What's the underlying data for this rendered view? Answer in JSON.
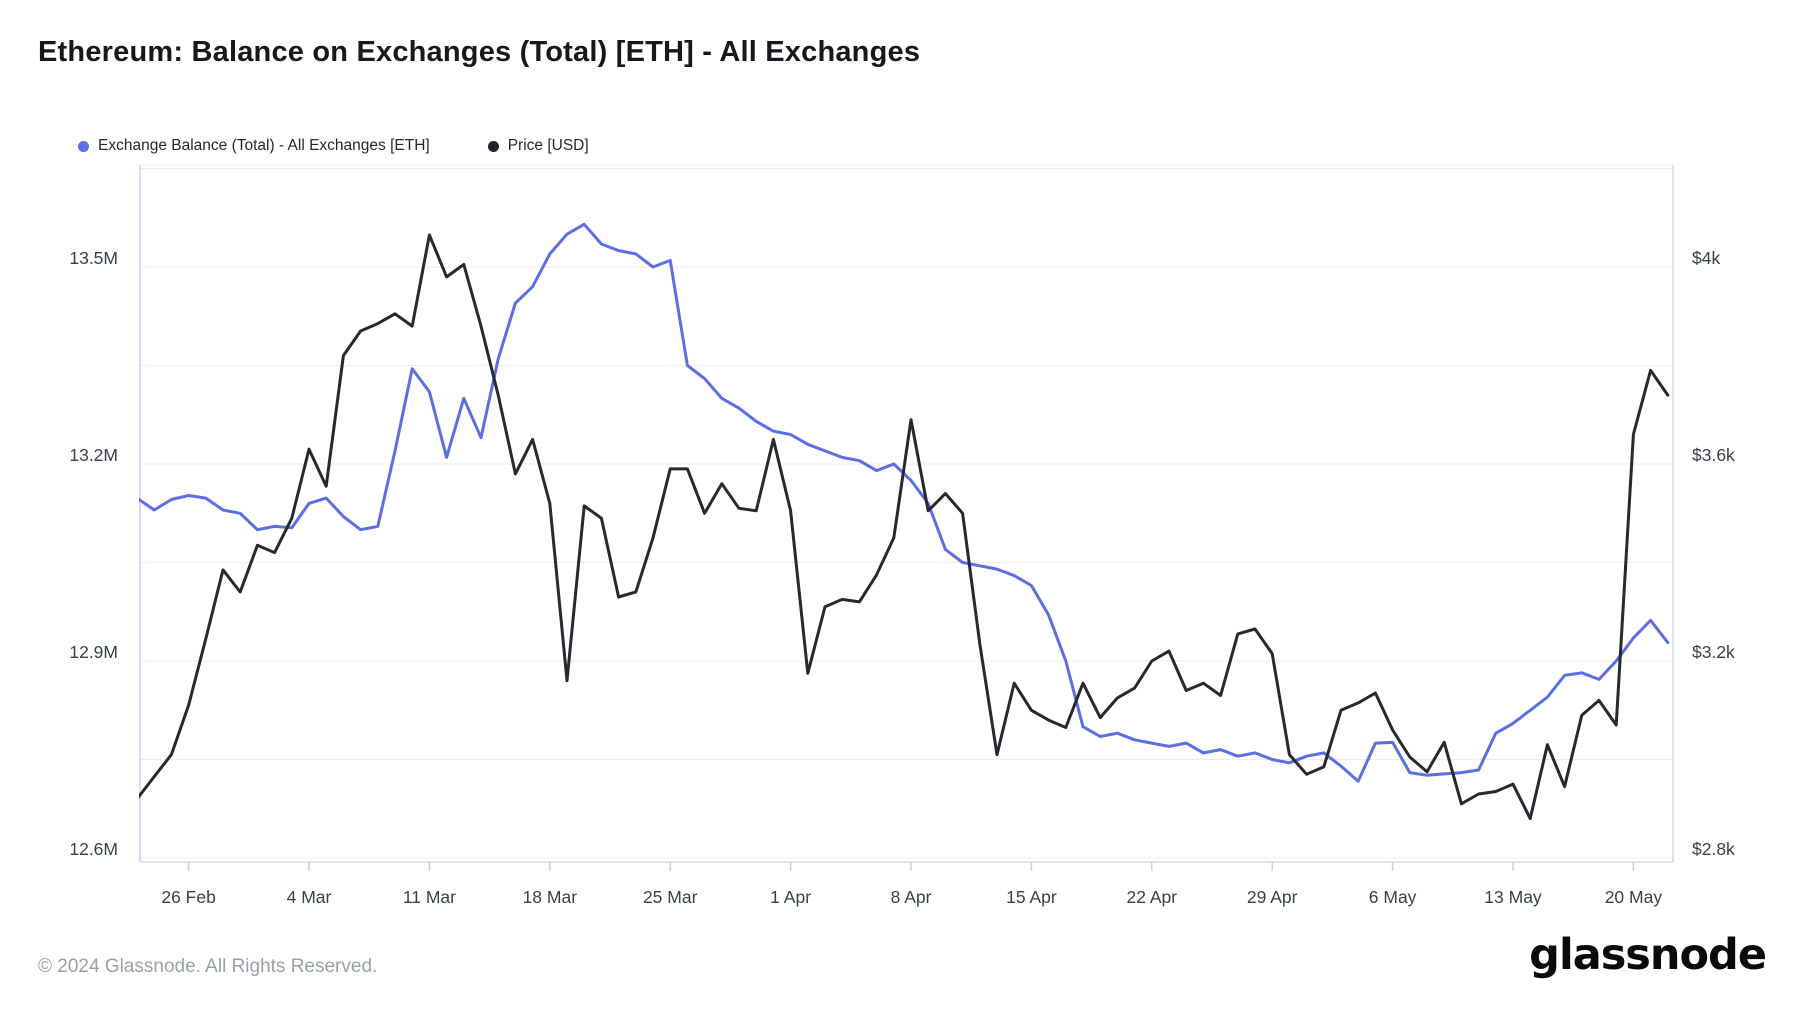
{
  "page": {
    "title": "Ethereum: Balance on Exchanges (Total) [ETH] - All Exchanges"
  },
  "legend": [
    {
      "label": "Exchange Balance (Total) - All Exchanges [ETH]",
      "color": "#5b6ee3"
    },
    {
      "label": "Price [USD]",
      "color": "#1f242b"
    }
  ],
  "footer": {
    "copyright": "© 2024 Glassnode. All Rights Reserved.",
    "logo_text": "glassnode"
  },
  "colors": {
    "background": "#ffffff",
    "grid_line": "#ededf0",
    "plot_left_border": "#c7d0f2",
    "plot_border": "#d7dade",
    "axis_text": "#3a4049",
    "balance_line": "#5b6ee3",
    "price_line": "#26292f"
  },
  "chart_data": {
    "type": "line",
    "title": "Ethereum: Balance on Exchanges (Total) [ETH] - All Exchanges",
    "grid": true,
    "legend_position": "top-left",
    "x_tick_labels": [
      "26 Feb",
      "4 Mar",
      "11 Mar",
      "18 Mar",
      "25 Mar",
      "1 Apr",
      "8 Apr",
      "15 Apr",
      "22 Apr",
      "29 Apr",
      "6 May",
      "13 May",
      "20 May"
    ],
    "dates": [
      "23 Feb",
      "24 Feb",
      "25 Feb",
      "26 Feb",
      "27 Feb",
      "28 Feb",
      "29 Feb",
      "1 Mar",
      "2 Mar",
      "3 Mar",
      "4 Mar",
      "5 Mar",
      "6 Mar",
      "7 Mar",
      "8 Mar",
      "9 Mar",
      "10 Mar",
      "11 Mar",
      "12 Mar",
      "13 Mar",
      "14 Mar",
      "15 Mar",
      "16 Mar",
      "17 Mar",
      "18 Mar",
      "19 Mar",
      "20 Mar",
      "21 Mar",
      "22 Mar",
      "23 Mar",
      "24 Mar",
      "25 Mar",
      "26 Mar",
      "27 Mar",
      "28 Mar",
      "29 Mar",
      "30 Mar",
      "31 Mar",
      "1 Apr",
      "2 Apr",
      "3 Apr",
      "4 Apr",
      "5 Apr",
      "6 Apr",
      "7 Apr",
      "8 Apr",
      "9 Apr",
      "10 Apr",
      "11 Apr",
      "12 Apr",
      "13 Apr",
      "14 Apr",
      "15 Apr",
      "16 Apr",
      "17 Apr",
      "18 Apr",
      "19 Apr",
      "20 Apr",
      "21 Apr",
      "22 Apr",
      "23 Apr",
      "24 Apr",
      "25 Apr",
      "26 Apr",
      "27 Apr",
      "28 Apr",
      "29 Apr",
      "30 Apr",
      "1 May",
      "2 May",
      "3 May",
      "4 May",
      "5 May",
      "6 May",
      "7 May",
      "8 May",
      "9 May",
      "10 May",
      "11 May",
      "12 May",
      "13 May",
      "14 May",
      "15 May",
      "16 May",
      "17 May",
      "18 May",
      "19 May",
      "20 May",
      "21 May",
      "22 May"
    ],
    "left_axis": {
      "label": "Exchange Balance (Total) [ETH]",
      "unit": "M ETH",
      "tick_labels": [
        "13.5M",
        "13.2M",
        "12.9M",
        "12.6M"
      ],
      "tick_values": [
        13.5,
        13.2,
        12.9,
        12.6
      ],
      "grid_values": [
        13.65,
        13.5,
        13.35,
        13.2,
        13.05,
        12.9,
        12.75,
        12.6
      ]
    },
    "right_axis": {
      "label": "Price",
      "unit": "USD",
      "tick_labels": [
        "$4k",
        "$3.6k",
        "$3.2k",
        "$2.8k"
      ],
      "tick_values": [
        4000,
        3600,
        3200,
        2800
      ]
    },
    "series": [
      {
        "name": "Exchange Balance (Total) - All Exchanges [ETH]",
        "axis": "left",
        "color": "#5b6ee3",
        "values": [
          13.148,
          13.13,
          13.146,
          13.152,
          13.148,
          13.13,
          13.125,
          13.1,
          13.105,
          13.103,
          13.14,
          13.148,
          13.12,
          13.1,
          13.105,
          13.22,
          13.345,
          13.31,
          13.21,
          13.3,
          13.24,
          13.36,
          13.445,
          13.47,
          13.52,
          13.55,
          13.565,
          13.535,
          13.525,
          13.52,
          13.5,
          13.51,
          13.35,
          13.33,
          13.3,
          13.285,
          13.265,
          13.25,
          13.245,
          13.23,
          13.22,
          13.21,
          13.205,
          13.19,
          13.2,
          13.175,
          13.14,
          13.07,
          13.05,
          13.045,
          13.04,
          13.03,
          13.015,
          12.97,
          12.9,
          12.8,
          12.785,
          12.79,
          12.78,
          12.775,
          12.77,
          12.775,
          12.76,
          12.765,
          12.755,
          12.76,
          12.75,
          12.745,
          12.755,
          12.76,
          12.74,
          12.717,
          12.775,
          12.776,
          12.73,
          12.726,
          12.728,
          12.73,
          12.734,
          12.79,
          12.805,
          12.825,
          12.845,
          12.878,
          12.882,
          12.872,
          12.9,
          12.935,
          12.962,
          12.928
        ]
      },
      {
        "name": "Price [USD]",
        "axis": "right",
        "color": "#26292f",
        "values": [
          2920,
          2965,
          3010,
          3110,
          3245,
          3385,
          3340,
          3435,
          3420,
          3490,
          3630,
          3555,
          3820,
          3870,
          3885,
          3905,
          3880,
          4065,
          3980,
          4005,
          3880,
          3740,
          3580,
          3650,
          3520,
          3160,
          3515,
          3490,
          3330,
          3340,
          3450,
          3590,
          3590,
          3500,
          3560,
          3510,
          3505,
          3650,
          3505,
          3175,
          3310,
          3325,
          3320,
          3375,
          3450,
          3690,
          3505,
          3540,
          3500,
          3235,
          3010,
          3155,
          3100,
          3080,
          3065,
          3155,
          3085,
          3125,
          3145,
          3200,
          3220,
          3140,
          3155,
          3130,
          3255,
          3265,
          3215,
          3010,
          2970,
          2985,
          3100,
          3115,
          3135,
          3060,
          3005,
          2975,
          3035,
          2910,
          2930,
          2935,
          2950,
          2880,
          3030,
          2945,
          3090,
          3120,
          3070,
          3660,
          3790,
          3740
        ]
      }
    ]
  }
}
